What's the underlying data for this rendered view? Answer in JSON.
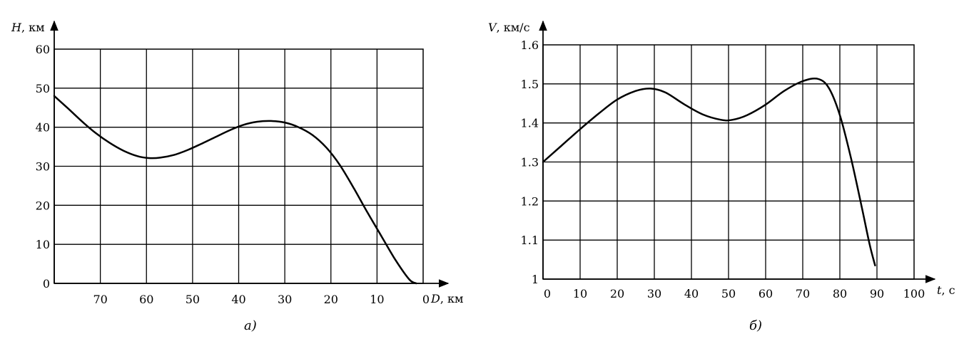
{
  "chart_data": [
    {
      "type": "line",
      "caption": "а)",
      "xlabel_var": "D",
      "xlabel_unit": ", км",
      "ylabel_var": "H",
      "ylabel_unit": ", км",
      "xlim": [
        80,
        0
      ],
      "ylim": [
        0,
        60
      ],
      "x_ticks": [
        70,
        60,
        50,
        40,
        30,
        20,
        10,
        0
      ],
      "y_ticks": [
        0,
        10,
        20,
        30,
        40,
        50,
        60
      ],
      "x_tick_labels": [
        "70",
        "60",
        "50",
        "40",
        "30",
        "20",
        "10",
        "0"
      ],
      "y_tick_labels": [
        "0",
        "10",
        "20",
        "30",
        "40",
        "50",
        "60"
      ],
      "grid": true,
      "series": [
        {
          "x": [
            80,
            77,
            74,
            71,
            68,
            65,
            62,
            59.5,
            57,
            54,
            51,
            48,
            45,
            42,
            39,
            36,
            33,
            30,
            27,
            24,
            21,
            18,
            15,
            12,
            9,
            6,
            3,
            1.5
          ],
          "y": [
            48,
            44.8,
            41.5,
            38.5,
            36,
            34,
            32.6,
            32.1,
            32.2,
            32.9,
            34.2,
            35.8,
            37.5,
            39.2,
            40.6,
            41.4,
            41.6,
            41.2,
            40,
            38,
            34.8,
            30.2,
            24.3,
            18,
            12,
            6,
            1,
            0
          ]
        }
      ]
    },
    {
      "type": "line",
      "caption": "б)",
      "xlabel_var": "t",
      "xlabel_unit": ", с",
      "ylabel_var": "V",
      "ylabel_unit": ", км/с",
      "xlim": [
        0,
        100
      ],
      "ylim": [
        1.0,
        1.6
      ],
      "x_ticks": [
        0,
        10,
        20,
        30,
        40,
        50,
        60,
        70,
        80,
        90,
        100
      ],
      "y_ticks": [
        1.0,
        1.1,
        1.2,
        1.3,
        1.4,
        1.5,
        1.6
      ],
      "x_tick_labels": [
        "0",
        "10",
        "20",
        "30",
        "40",
        "50",
        "60",
        "70",
        "80",
        "90",
        "100"
      ],
      "y_tick_labels": [
        "1",
        "1.1",
        "1.2",
        "1.3",
        "1.4",
        "1.5",
        "1.6"
      ],
      "grid": true,
      "series": [
        {
          "x": [
            0,
            5,
            10,
            15,
            20,
            25,
            29,
            33,
            38,
            43,
            48,
            51,
            55,
            60,
            65,
            70,
            74,
            77,
            80,
            83,
            86,
            88,
            89.5
          ],
          "y": [
            1.3,
            1.342,
            1.384,
            1.424,
            1.46,
            1.482,
            1.488,
            1.478,
            1.448,
            1.422,
            1.408,
            1.408,
            1.42,
            1.447,
            1.482,
            1.507,
            1.513,
            1.49,
            1.42,
            1.31,
            1.18,
            1.09,
            1.035
          ]
        }
      ]
    }
  ]
}
